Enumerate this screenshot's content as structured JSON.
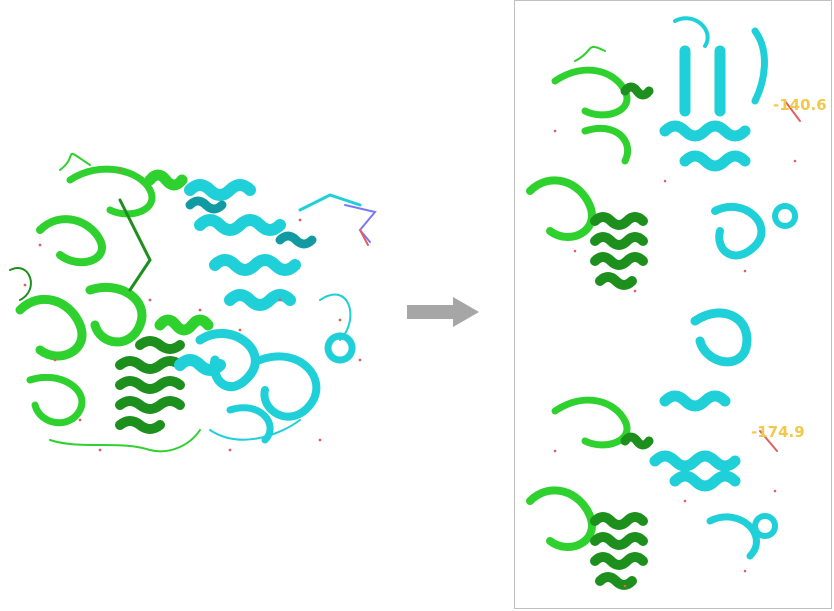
{
  "panels": {
    "right_top": {
      "angle_label": "-140.6"
    },
    "right_bottom": {
      "angle_label": "-174.9"
    }
  },
  "colors": {
    "domain_a": "#2fd12f",
    "domain_a_dark": "#1d8f1d",
    "domain_b": "#1fd0d8",
    "domain_b_dark": "#129aa3",
    "water": "#e06060",
    "label": "#f2c84b",
    "arrow": "#a6a6a6",
    "frame": "#c0c0c0"
  },
  "icons": [
    "right-arrow-icon"
  ]
}
